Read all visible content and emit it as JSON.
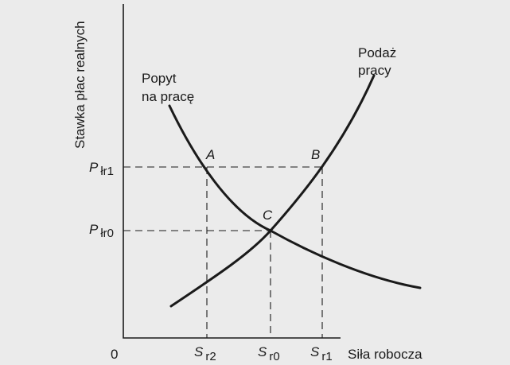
{
  "y_axis": {
    "label": "Stawka płac realnych"
  },
  "x_axis": {
    "label": "Siła robocza",
    "origin": "0"
  },
  "demand_curve": {
    "label_line1": "Popyt",
    "label_line2": "na pracę"
  },
  "supply_curve": {
    "label_line1": "Podaż",
    "label_line2": "pracy"
  },
  "points": [
    "A",
    "B",
    "C"
  ],
  "y_ticks": [
    {
      "main": "P",
      "sub": "łr1"
    },
    {
      "main": "P",
      "sub": "łr0"
    }
  ],
  "x_ticks": [
    {
      "main": "S",
      "sub": "r2"
    },
    {
      "main": "S",
      "sub": "r0"
    },
    {
      "main": "S",
      "sub": "r1"
    }
  ]
}
